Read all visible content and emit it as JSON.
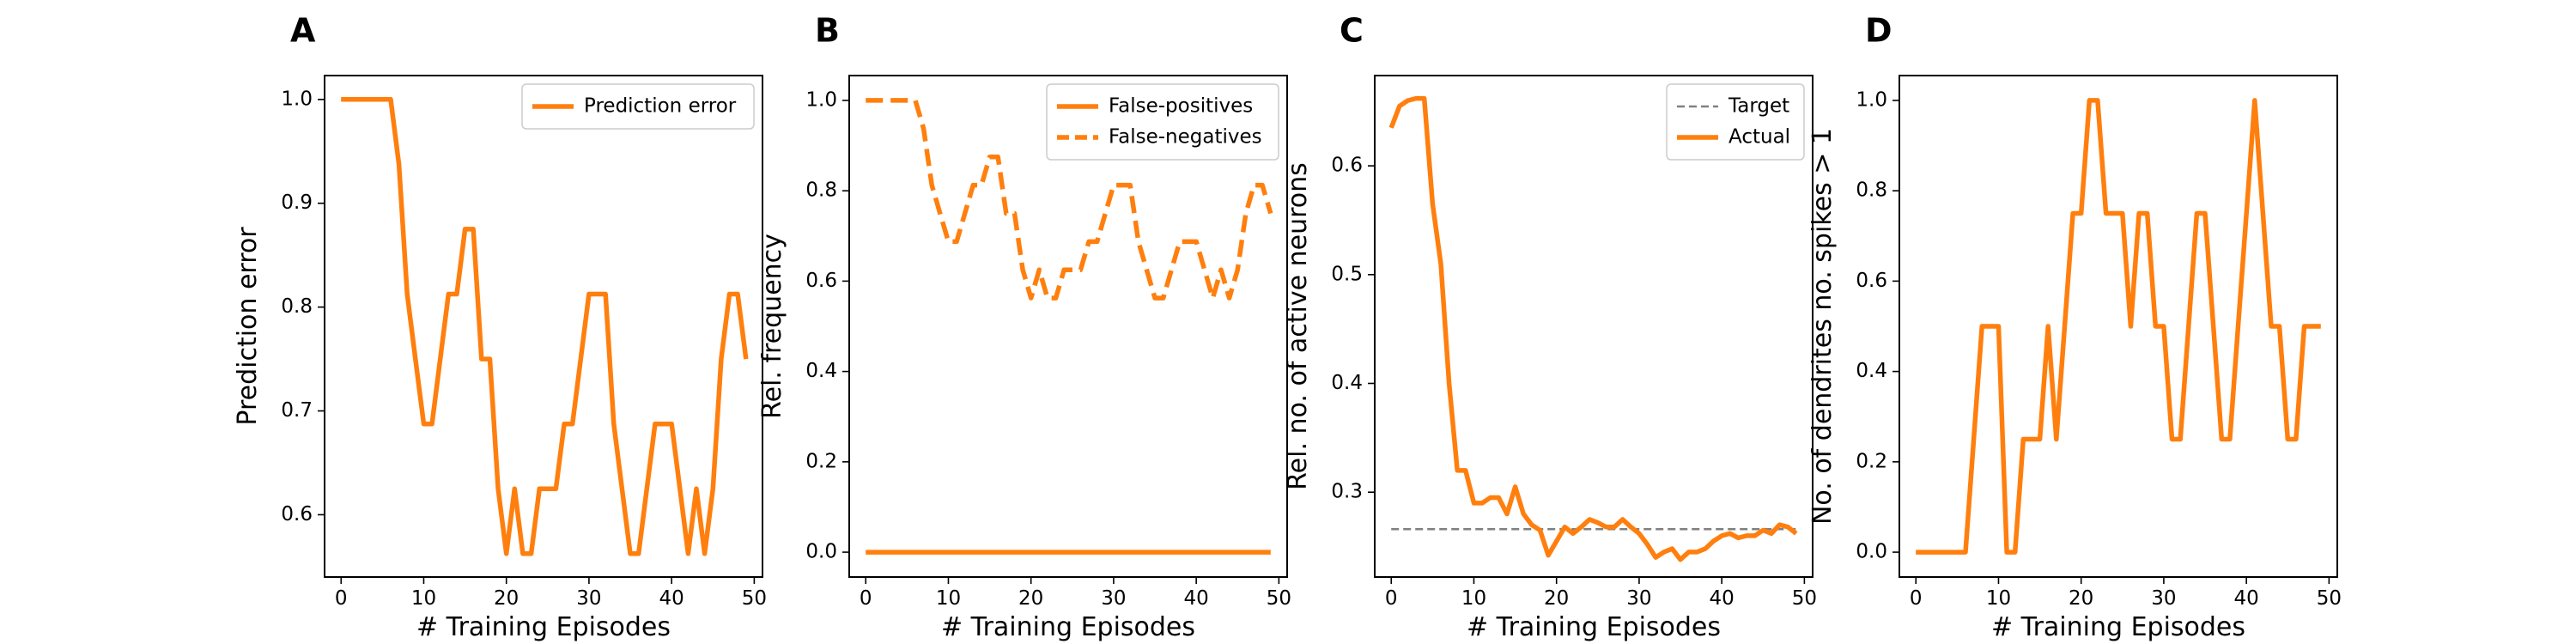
{
  "chart_data": [
    {
      "type": "line",
      "panel": "A",
      "xlabel": "# Training Episodes",
      "ylabel": "Prediction error",
      "xlim": [
        -2,
        51
      ],
      "ylim": [
        0.54,
        1.023
      ],
      "xticks": [
        0,
        10,
        20,
        30,
        40,
        50
      ],
      "yticks": [
        0.6,
        0.7,
        0.8,
        0.9,
        1.0
      ],
      "ytick_labels": [
        "0.6",
        "0.7",
        "0.8",
        "0.9",
        "1.0"
      ],
      "grid": false,
      "legend_position": "top-right",
      "colors": {
        "orange": "#ff7f0e"
      },
      "series": [
        {
          "name": "Prediction error",
          "color": "#ff7f0e",
          "style": "solid",
          "x": [
            0,
            1,
            2,
            3,
            4,
            5,
            6,
            7,
            8,
            9,
            10,
            11,
            12,
            13,
            14,
            15,
            16,
            17,
            18,
            19,
            20,
            21,
            22,
            23,
            24,
            25,
            26,
            27,
            28,
            29,
            30,
            31,
            32,
            33,
            34,
            35,
            36,
            37,
            38,
            39,
            40,
            41,
            42,
            43,
            44,
            45,
            46,
            47,
            48,
            49
          ],
          "y": [
            1.0,
            1.0,
            1.0,
            1.0,
            1.0,
            1.0,
            1.0,
            0.9375,
            0.8125,
            0.75,
            0.6875,
            0.6875,
            0.75,
            0.8125,
            0.8125,
            0.875,
            0.875,
            0.75,
            0.75,
            0.625,
            0.5625,
            0.625,
            0.5625,
            0.5625,
            0.625,
            0.625,
            0.625,
            0.6875,
            0.6875,
            0.75,
            0.8125,
            0.8125,
            0.8125,
            0.6875,
            0.625,
            0.5625,
            0.5625,
            0.625,
            0.6875,
            0.6875,
            0.6875,
            0.625,
            0.5625,
            0.625,
            0.5625,
            0.625,
            0.75,
            0.8125,
            0.8125,
            0.75
          ]
        }
      ]
    },
    {
      "type": "line",
      "panel": "B",
      "xlabel": "# Training Episodes",
      "ylabel": "Rel. frequency",
      "xlim": [
        -2,
        51
      ],
      "ylim": [
        -0.055,
        1.055
      ],
      "xticks": [
        0,
        10,
        20,
        30,
        40,
        50
      ],
      "yticks": [
        0.0,
        0.2,
        0.4,
        0.6,
        0.8,
        1.0
      ],
      "ytick_labels": [
        "0.0",
        "0.2",
        "0.4",
        "0.6",
        "0.8",
        "1.0"
      ],
      "grid": false,
      "legend_position": "top-right",
      "series": [
        {
          "name": "False-positives",
          "color": "#ff7f0e",
          "style": "solid",
          "x": [
            0,
            49
          ],
          "y": [
            0.0,
            0.0
          ]
        },
        {
          "name": "False-negatives",
          "color": "#ff7f0e",
          "style": "dashed",
          "x": [
            0,
            1,
            2,
            3,
            4,
            5,
            6,
            7,
            8,
            9,
            10,
            11,
            12,
            13,
            14,
            15,
            16,
            17,
            18,
            19,
            20,
            21,
            22,
            23,
            24,
            25,
            26,
            27,
            28,
            29,
            30,
            31,
            32,
            33,
            34,
            35,
            36,
            37,
            38,
            39,
            40,
            41,
            42,
            43,
            44,
            45,
            46,
            47,
            48,
            49
          ],
          "y": [
            1.0,
            1.0,
            1.0,
            1.0,
            1.0,
            1.0,
            1.0,
            0.9375,
            0.8125,
            0.75,
            0.6875,
            0.6875,
            0.75,
            0.8125,
            0.8125,
            0.875,
            0.875,
            0.75,
            0.75,
            0.625,
            0.5625,
            0.625,
            0.5625,
            0.5625,
            0.625,
            0.625,
            0.625,
            0.6875,
            0.6875,
            0.75,
            0.8125,
            0.8125,
            0.8125,
            0.6875,
            0.625,
            0.5625,
            0.5625,
            0.625,
            0.6875,
            0.6875,
            0.6875,
            0.625,
            0.5625,
            0.625,
            0.5625,
            0.625,
            0.75,
            0.8125,
            0.8125,
            0.75
          ]
        }
      ]
    },
    {
      "type": "line",
      "panel": "C",
      "xlabel": "# Training Episodes",
      "ylabel": "Rel. no. of active neurons",
      "xlim": [
        -2,
        51
      ],
      "ylim": [
        0.222,
        0.683
      ],
      "xticks": [
        0,
        10,
        20,
        30,
        40,
        50
      ],
      "yticks": [
        0.3,
        0.4,
        0.5,
        0.6
      ],
      "ytick_labels": [
        "0.3",
        "0.4",
        "0.5",
        "0.6"
      ],
      "grid": false,
      "legend_position": "top-right",
      "series": [
        {
          "name": "Target",
          "color": "#808080",
          "style": "dashed",
          "x": [
            0,
            49
          ],
          "y": [
            0.266,
            0.266
          ]
        },
        {
          "name": "Actual",
          "color": "#ff7f0e",
          "style": "solid",
          "x": [
            0,
            1,
            2,
            3,
            4,
            5,
            6,
            7,
            8,
            9,
            10,
            11,
            12,
            13,
            14,
            15,
            16,
            17,
            18,
            19,
            20,
            21,
            22,
            23,
            24,
            25,
            26,
            27,
            28,
            29,
            30,
            31,
            32,
            33,
            34,
            35,
            36,
            37,
            38,
            39,
            40,
            41,
            42,
            43,
            44,
            45,
            46,
            47,
            48,
            49
          ],
          "y": [
            0.635,
            0.655,
            0.66,
            0.662,
            0.662,
            0.565,
            0.51,
            0.4,
            0.32,
            0.32,
            0.29,
            0.29,
            0.295,
            0.295,
            0.28,
            0.305,
            0.28,
            0.27,
            0.265,
            0.242,
            0.255,
            0.268,
            0.262,
            0.268,
            0.275,
            0.272,
            0.268,
            0.268,
            0.275,
            0.268,
            0.262,
            0.252,
            0.24,
            0.245,
            0.248,
            0.238,
            0.245,
            0.245,
            0.248,
            0.255,
            0.26,
            0.262,
            0.258,
            0.26,
            0.26,
            0.265,
            0.262,
            0.27,
            0.268,
            0.262
          ]
        }
      ]
    },
    {
      "type": "line",
      "panel": "D",
      "xlabel": "# Training Episodes",
      "ylabel": "No. of dendrites no. spikes > 1",
      "xlim": [
        -2,
        51
      ],
      "ylim": [
        -0.055,
        1.055
      ],
      "xticks": [
        0,
        10,
        20,
        30,
        40,
        50
      ],
      "yticks": [
        0.0,
        0.2,
        0.4,
        0.6,
        0.8,
        1.0
      ],
      "ytick_labels": [
        "0.0",
        "0.2",
        "0.4",
        "0.6",
        "0.8",
        "1.0"
      ],
      "grid": false,
      "series": [
        {
          "color": "#ff7f0e",
          "style": "solid",
          "x": [
            0,
            1,
            2,
            3,
            4,
            5,
            6,
            7,
            8,
            9,
            10,
            11,
            12,
            13,
            14,
            15,
            16,
            17,
            18,
            19,
            20,
            21,
            22,
            23,
            24,
            25,
            26,
            27,
            28,
            29,
            30,
            31,
            32,
            33,
            34,
            35,
            36,
            37,
            38,
            39,
            40,
            41,
            42,
            43,
            44,
            45,
            46,
            47,
            48,
            49
          ],
          "y": [
            0.0,
            0.0,
            0.0,
            0.0,
            0.0,
            0.0,
            0.0,
            0.25,
            0.5,
            0.5,
            0.5,
            0.0,
            0.0,
            0.25,
            0.25,
            0.25,
            0.5,
            0.25,
            0.5,
            0.75,
            0.75,
            1.0,
            1.0,
            0.75,
            0.75,
            0.75,
            0.5,
            0.75,
            0.75,
            0.5,
            0.5,
            0.25,
            0.25,
            0.5,
            0.75,
            0.75,
            0.5,
            0.25,
            0.25,
            0.5,
            0.75,
            1.0,
            0.75,
            0.5,
            0.5,
            0.25,
            0.25,
            0.5,
            0.5,
            0.5
          ]
        }
      ]
    }
  ],
  "panel_letters": [
    "A",
    "B",
    "C",
    "D"
  ]
}
